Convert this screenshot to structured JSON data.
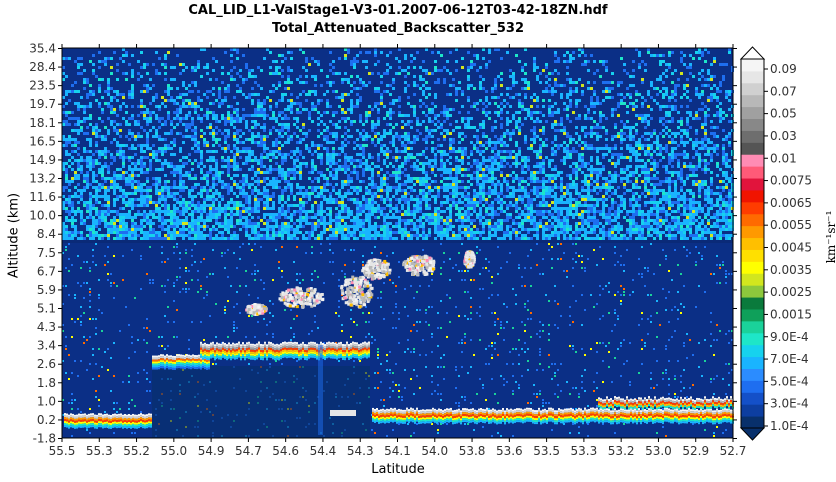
{
  "chart_data": {
    "type": "heatmap",
    "title": "CAL_LID_L1-ValStage1-V3-01.2007-06-12T03-42-18ZN.hdf",
    "subtitle": "Total_Attenuated_Backscatter_532",
    "xlabel": "Latitude",
    "ylabel": "Altitude (km)",
    "x_ticks": [
      "55.5",
      "55.3",
      "55.2",
      "55.0",
      "54.9",
      "54.7",
      "54.6",
      "54.4",
      "54.3",
      "54.1",
      "54.0",
      "53.8",
      "53.6",
      "53.5",
      "53.3",
      "53.2",
      "53.0",
      "52.9",
      "52.7"
    ],
    "y_ticks": [
      "-1.8",
      "0.2",
      "1.0",
      "1.8",
      "2.6",
      "3.4",
      "4.3",
      "5.1",
      "5.9",
      "6.7",
      "7.5",
      "8.4",
      "10.0",
      "11.6",
      "13.2",
      "14.9",
      "16.5",
      "18.1",
      "19.7",
      "23.5",
      "28.4",
      "35.4"
    ],
    "colorbar_ticks": [
      "1.0E-4",
      "3.0E-4",
      "5.0E-4",
      "7.0E-4",
      "9.0E-4",
      "0.0015",
      "0.0025",
      "0.0035",
      "0.0045",
      "0.0055",
      "0.0065",
      "0.0075",
      "0.01",
      "0.03",
      "0.05",
      "0.07",
      "0.09"
    ],
    "colorbar_unit": "km⁻¹sr⁻¹",
    "colorbar_colors": [
      "#08306b",
      "#0d3ea0",
      "#1450c8",
      "#1e6ef0",
      "#2b8cff",
      "#19b4ff",
      "#16d2ee",
      "#1ee6c8",
      "#1ad29a",
      "#0fa05a",
      "#0a7a3c",
      "#8cc83c",
      "#d2e61e",
      "#ffff00",
      "#ffe000",
      "#ffbf00",
      "#ff9900",
      "#ff6a00",
      "#ff3c00",
      "#f01400",
      "#e1143c",
      "#ff5a78",
      "#ff8cb4",
      "#555555",
      "#6e6e6e",
      "#888888",
      "#a0a0a0",
      "#b8b8b8",
      "#d0d0d0",
      "#e6e6e6",
      "#f5f5f5"
    ],
    "features": [
      {
        "name": "surface",
        "x_start": 55.5,
        "x_end": 55.15,
        "alt": 0.25
      },
      {
        "name": "surface",
        "x_start": 54.1,
        "x_end": 52.6,
        "alt": 0.25
      },
      {
        "name": "low cloud top",
        "x_start": 55.1,
        "x_end": 54.15,
        "alt": 3.1
      },
      {
        "name": "mid cloud",
        "x_start": 54.75,
        "x_end": 53.9,
        "alt": 5.8
      },
      {
        "name": "cloud/hill",
        "x_start": 53.15,
        "x_end": 52.6,
        "alt": 0.9
      }
    ],
    "legend": "colorbar-right"
  }
}
